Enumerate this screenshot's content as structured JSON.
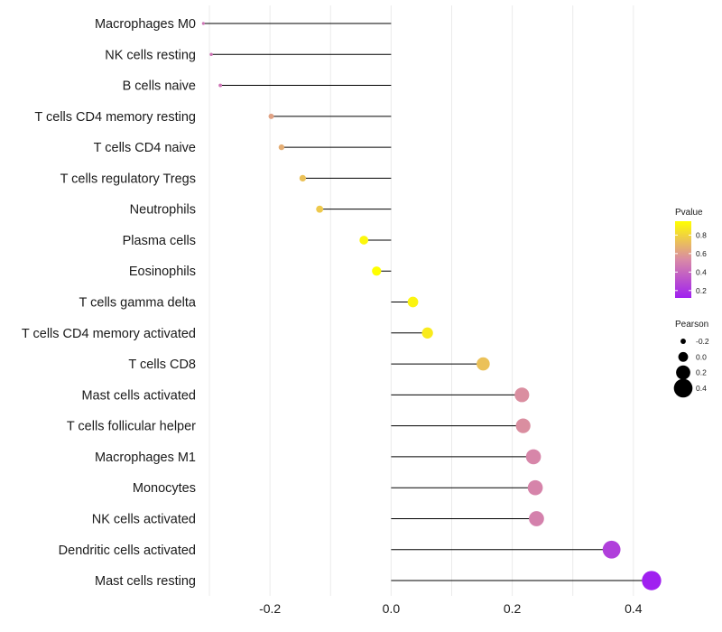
{
  "chart_data": {
    "type": "lollipop",
    "title": "",
    "xlabel": "",
    "ylabel": "",
    "xlim": [
      -0.315,
      0.445
    ],
    "xticks": [
      -0.2,
      0.0,
      0.2,
      0.4
    ],
    "xtick_labels": [
      "-0.2",
      "0.0",
      "0.2",
      "0.4"
    ],
    "grid": true,
    "categories": [
      "Macrophages M0",
      "NK cells resting",
      "B cells naive",
      "T cells CD4 memory resting",
      "T cells CD4 naive",
      "T cells regulatory  Tregs ",
      "Neutrophils",
      "Plasma cells",
      "Eosinophils",
      "T cells gamma delta",
      "T cells CD4 memory activated",
      "T cells CD8",
      "Mast cells activated",
      "T cells follicular helper",
      "Macrophages M1",
      "Monocytes",
      "NK cells activated",
      "Dendritic cells activated",
      "Mast cells resting"
    ],
    "pearson": [
      -0.31,
      -0.297,
      -0.282,
      -0.198,
      -0.181,
      -0.146,
      -0.118,
      -0.045,
      -0.024,
      0.036,
      0.06,
      0.152,
      0.216,
      0.218,
      0.235,
      0.238,
      0.24,
      0.364,
      0.43
    ],
    "pvalue": [
      0.45,
      0.45,
      0.45,
      0.62,
      0.66,
      0.73,
      0.76,
      0.92,
      0.95,
      0.91,
      0.88,
      0.73,
      0.55,
      0.55,
      0.52,
      0.51,
      0.5,
      0.24,
      0.12
    ],
    "legend": {
      "color": {
        "title": "Pvalue",
        "ticks": [
          0.2,
          0.4,
          0.6,
          0.8
        ],
        "tick_labels": [
          "0.2",
          "0.4",
          "0.6",
          "0.8"
        ],
        "range": [
          0.12,
          0.95
        ],
        "low_color": "#a020f0",
        "mid_color": "#d98aa6",
        "high_color": "#ffff00"
      },
      "size": {
        "title": "Pearson",
        "values": [
          -0.2,
          0.0,
          0.2,
          0.4
        ],
        "labels": [
          "-0.2",
          "0.0",
          "0.2",
          "0.4"
        ]
      },
      "position": "right"
    }
  }
}
